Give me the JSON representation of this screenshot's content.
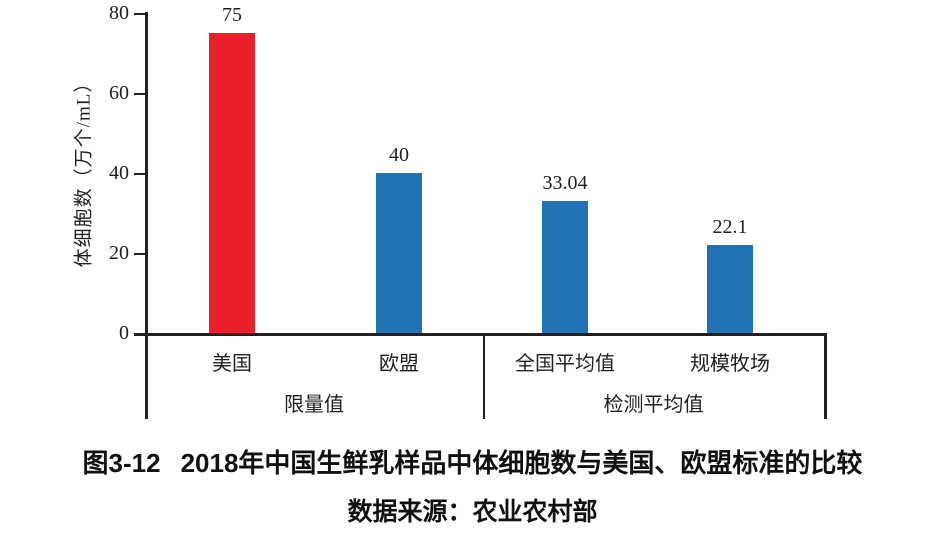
{
  "chart_data": {
    "type": "bar",
    "categories": [
      "美国",
      "欧盟",
      "全国平均值",
      "规模牧场"
    ],
    "values": [
      75,
      40,
      33.04,
      22.1
    ],
    "value_labels": [
      "75",
      "40",
      "33.04",
      "22.1"
    ],
    "bar_colors": [
      "#e8202a",
      "#2272b6",
      "#2272b6",
      "#2272b6"
    ],
    "groups": [
      {
        "label": "限量值",
        "categories": [
          "美国",
          "欧盟"
        ]
      },
      {
        "label": "检测平均值",
        "categories": [
          "全国平均值",
          "规模牧场"
        ]
      }
    ],
    "ylabel": "体细胞数（万个/mL）",
    "xlabel": "",
    "yticks": [
      "0",
      "20",
      "40",
      "60",
      "80"
    ],
    "ylim": [
      0,
      80
    ],
    "grid": false,
    "legend_position": "none"
  },
  "caption": {
    "figure_label": "图3-12",
    "title": "2018年中国生鲜乳样品中体细胞数与美国、欧盟标准的比较",
    "source": "数据来源：农业农村部"
  },
  "colors": {
    "red": "#e8202a",
    "blue": "#2272b6",
    "axis": "#231f20",
    "background": "#ffffff"
  }
}
